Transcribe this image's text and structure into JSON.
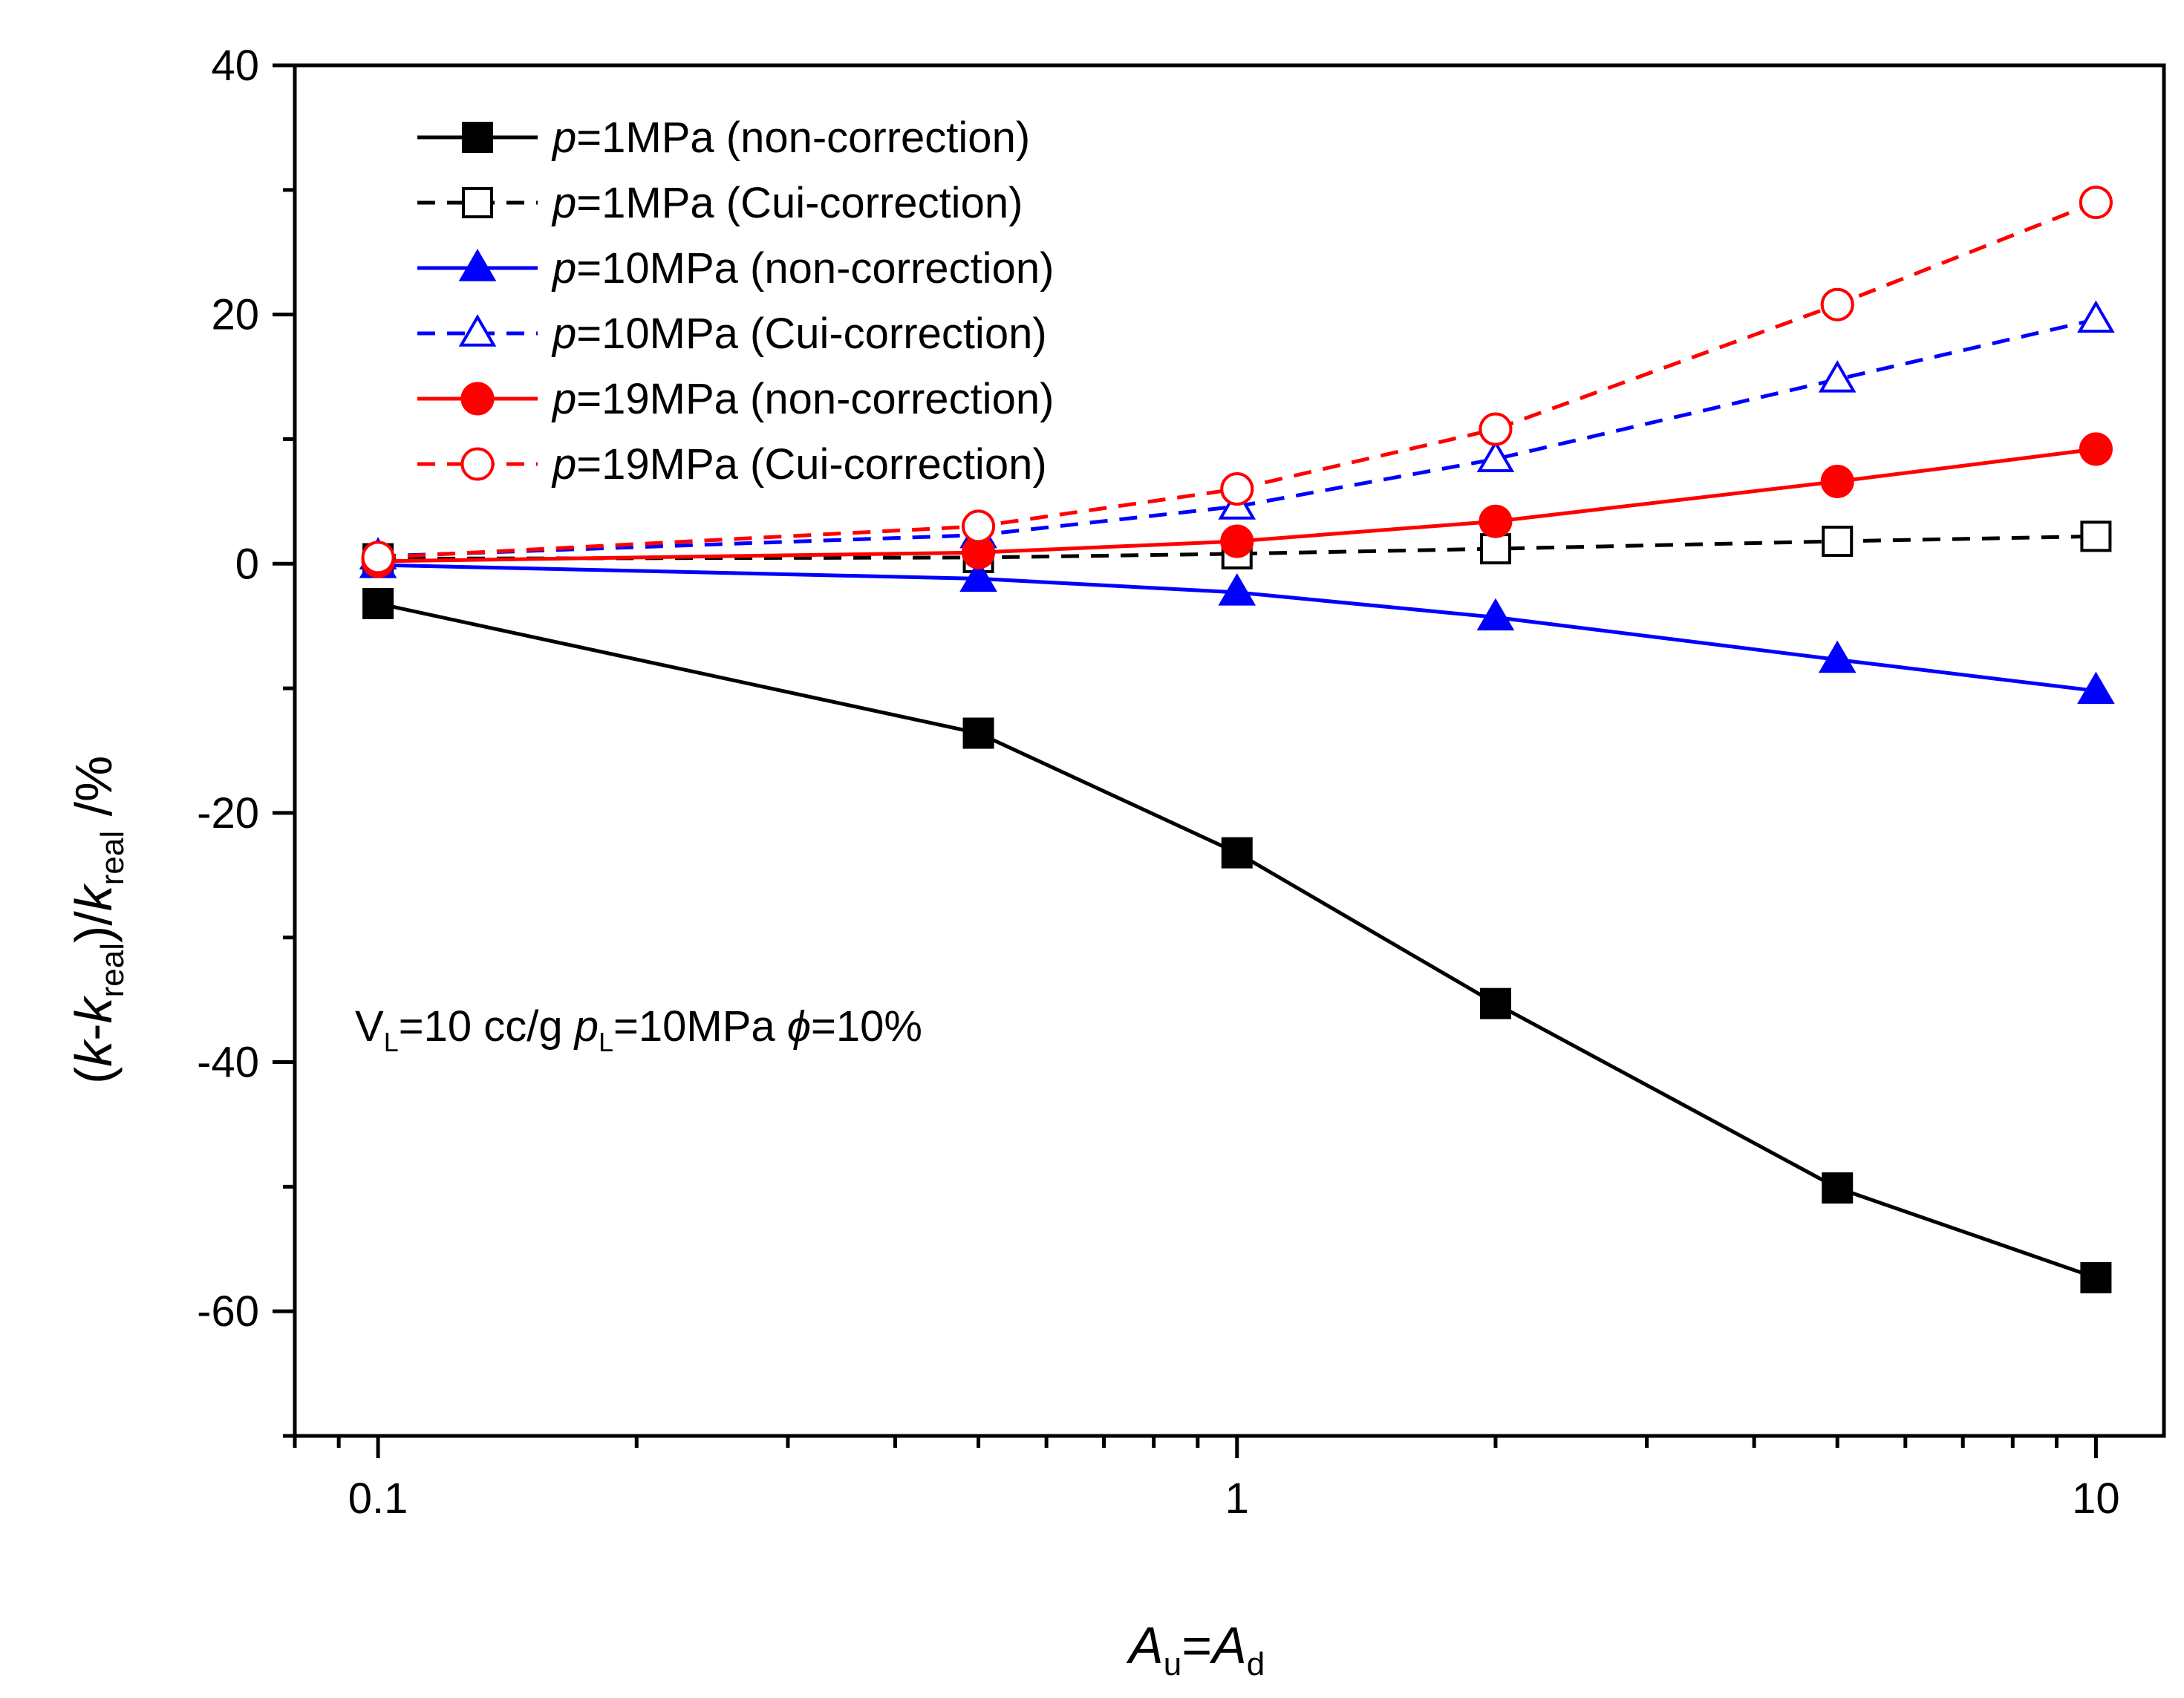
{
  "chart_data": {
    "type": "line",
    "xscale": "log",
    "xlim": [
      0.08,
      12
    ],
    "ylim": [
      -70,
      40
    ],
    "xticks_major": [
      0.1,
      1,
      10
    ],
    "xtick_labels": [
      "0.1",
      "1",
      "10"
    ],
    "yticks_major": [
      40,
      20,
      0,
      -20,
      -40,
      -60
    ],
    "ytick_labels": [
      "40",
      "20",
      "0",
      "-20",
      "-40",
      "-60"
    ],
    "xlabel": {
      "main": "A",
      "sub": "u",
      "eq": "=",
      "main2": "A",
      "sub2": "d"
    },
    "ylabel": {
      "parts": [
        "(",
        "k",
        "-",
        "k",
        "real",
        ")/",
        "k",
        "real",
        " /%"
      ]
    },
    "annotation": {
      "V": "V",
      "Vsub": "L",
      "text1": "=10 cc/g ",
      "p": "p",
      "psub": "L",
      "text2": "=10MPa ",
      "phi": "ϕ",
      "text3": "=10%"
    },
    "legend_position": "top-left",
    "x": [
      0.1,
      0.5,
      1,
      2,
      5,
      10
    ],
    "series": [
      {
        "name": "=1MPa (non-correction)",
        "prefix": "p",
        "values": [
          -3.2,
          -13.6,
          -23.2,
          -35.3,
          -50.1,
          -57.3
        ],
        "color": "#000000",
        "dash": "solid",
        "marker": "square",
        "filled": true
      },
      {
        "name": "=1MPa (Cui-correction)",
        "prefix": "p",
        "values": [
          0.4,
          0.5,
          0.8,
          1.2,
          1.8,
          2.2
        ],
        "color": "#000000",
        "dash": "dashed",
        "marker": "square",
        "filled": false
      },
      {
        "name": "=10MPa (non-correction)",
        "prefix": "p",
        "values": [
          -0.1,
          -1.2,
          -2.3,
          -4.3,
          -7.7,
          -10.2
        ],
        "color": "#0000ff",
        "dash": "solid",
        "marker": "triangle",
        "filled": true
      },
      {
        "name": "=10MPa (Cui-correction)",
        "prefix": "p",
        "values": [
          0.6,
          2.3,
          4.6,
          8.4,
          14.8,
          19.6
        ],
        "color": "#0000ff",
        "dash": "dashed",
        "marker": "triangle",
        "filled": false
      },
      {
        "name": "=19MPa (non-correction)",
        "prefix": "p",
        "values": [
          0.2,
          0.9,
          1.8,
          3.4,
          6.6,
          9.2
        ],
        "color": "#ff0000",
        "dash": "solid",
        "marker": "circle",
        "filled": true
      },
      {
        "name": "=19MPa (Cui-correction)",
        "prefix": "p",
        "values": [
          0.5,
          3.0,
          6.0,
          10.8,
          20.8,
          29.0
        ],
        "color": "#ff0000",
        "dash": "dashed",
        "marker": "circle",
        "filled": false
      }
    ]
  }
}
